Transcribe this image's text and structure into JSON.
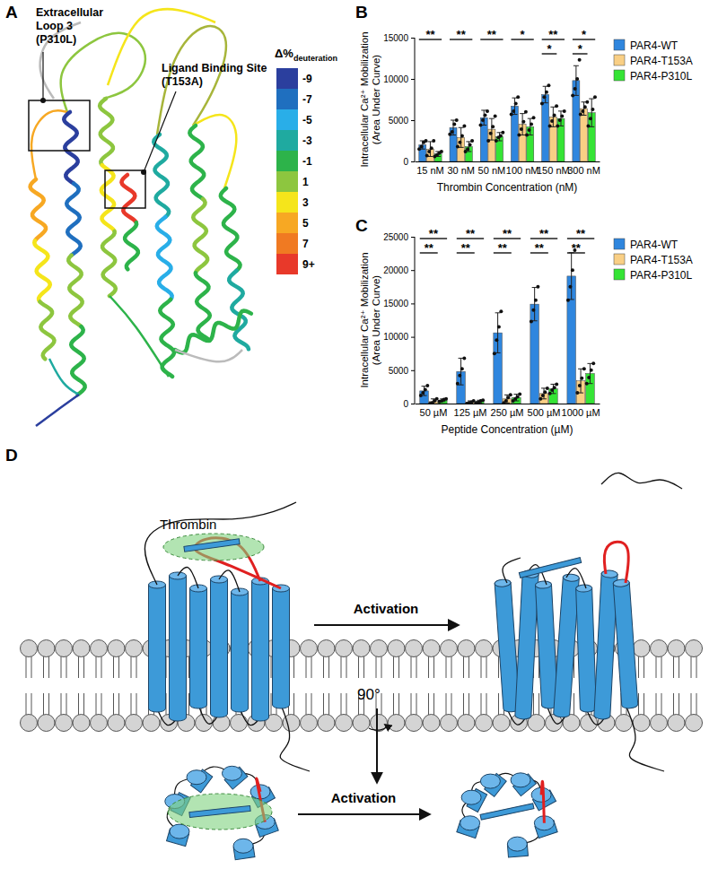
{
  "panel_labels": [
    "A",
    "B",
    "C",
    "D"
  ],
  "panel_a": {
    "colorbar_title": "Δ%",
    "colorbar_title_sub": "deuteration",
    "colorbar": {
      "ticks": [
        -9,
        -7,
        -5,
        -3,
        -1,
        1,
        3,
        5,
        7,
        {
          "value": 9,
          "label": "9+"
        }
      ],
      "colors": [
        "#2b3f9e",
        "#1f6fbf",
        "#29aee8",
        "#1faaa0",
        "#2db34a",
        "#8dc63f",
        "#f5e51b",
        "#f7a823",
        "#f07a22",
        "#e8392a"
      ]
    },
    "annotations": [
      {
        "lines": [
          "Extracellular",
          "Loop 3",
          "(P310L)"
        ]
      },
      {
        "lines": [
          "Ligand Binding Site",
          "(T153A)"
        ]
      }
    ]
  },
  "chart_data": [
    {
      "type": "bar",
      "xlabel": "Thrombin Concentration (nM)",
      "ylabel": [
        "Intracellular Ca²⁺ Mobilization",
        "(Area Under Curve)"
      ],
      "categories": [
        "15 nM",
        "30 nM",
        "50 nM",
        "100 nM",
        "150 nM",
        "300 nM"
      ],
      "ylim": [
        0,
        15000
      ],
      "yticks": [
        0,
        5000,
        10000,
        15000
      ],
      "legend": "right",
      "series": [
        {
          "name": "PAR4-WT",
          "color": "#2f86de",
          "values": [
            2000,
            4100,
            5300,
            6700,
            8100,
            9800
          ],
          "errors": [
            500,
            900,
            900,
            1000,
            1000,
            1800
          ],
          "points": [
            [
              1500,
              1800,
              2300,
              2500
            ],
            [
              3300,
              3600,
              4500,
              5000
            ],
            [
              4400,
              5000,
              5600,
              6100
            ],
            [
              5700,
              6100,
              7000,
              7800
            ],
            [
              7000,
              7800,
              8400,
              9200
            ],
            [
              8000,
              8800,
              10000,
              12300
            ]
          ]
        },
        {
          "name": "PAR4-T153A",
          "color": "#f9cf85",
          "values": [
            1500,
            2900,
            3900,
            4500,
            5400,
            6400
          ],
          "errors": [
            900,
            1200,
            1300,
            1300,
            1200,
            800
          ],
          "points": [
            [
              700,
              1200,
              1600,
              2500
            ],
            [
              1800,
              2300,
              3100,
              4300
            ],
            [
              2500,
              3400,
              4200,
              5500
            ],
            [
              3200,
              3900,
              4800,
              6000
            ],
            [
              4300,
              4900,
              5600,
              6700
            ],
            [
              5700,
              6100,
              6600,
              7200
            ]
          ]
        },
        {
          "name": "PAR4-P310L",
          "color": "#35e435",
          "values": [
            900,
            1800,
            3000,
            4200,
            5200,
            5900
          ],
          "errors": [
            300,
            600,
            500,
            1000,
            900,
            1700
          ],
          "points": [
            [
              600,
              800,
              1000,
              1200
            ],
            [
              1200,
              1500,
              2000,
              2500
            ],
            [
              2500,
              2900,
              3100,
              3500
            ],
            [
              3200,
              3800,
              4500,
              5300
            ],
            [
              4300,
              5000,
              5500,
              6100
            ],
            [
              4300,
              5200,
              6300,
              7800
            ]
          ]
        }
      ],
      "significance": [
        {
          "category": "15 nM",
          "vs": "PAR4-P310L",
          "label": "**"
        },
        {
          "category": "30 nM",
          "vs": "PAR4-P310L",
          "label": "**"
        },
        {
          "category": "50 nM",
          "vs": "PAR4-P310L",
          "label": "**"
        },
        {
          "category": "100 nM",
          "vs": "PAR4-P310L",
          "label": "*"
        },
        {
          "category": "150 nM",
          "vs": "PAR4-P310L",
          "label": "**"
        },
        {
          "category": "150 nM",
          "vs": "PAR4-T153A",
          "label": "*"
        },
        {
          "category": "300 nM",
          "vs": "PAR4-P310L",
          "label": "*"
        },
        {
          "category": "300 nM",
          "vs": "PAR4-T153A",
          "label": "*"
        }
      ]
    },
    {
      "type": "bar",
      "xlabel": "Peptide Concentration (µM)",
      "ylabel": [
        "Intracellular Ca²⁺ Mobilization",
        "(Area Under Curve)"
      ],
      "categories": [
        "50 µM",
        "125 µM",
        "250 µM",
        "500 µM",
        "1000 µM"
      ],
      "ylim": [
        0,
        25000
      ],
      "yticks": [
        0,
        5000,
        10000,
        15000,
        20000,
        25000
      ],
      "legend": "right",
      "series": [
        {
          "name": "PAR4-WT",
          "color": "#2f86de",
          "values": [
            1900,
            4800,
            10600,
            14900,
            19100
          ],
          "errors": [
            700,
            2000,
            3000,
            2500,
            3500
          ],
          "points": [
            [
              1200,
              1600,
              2100,
              2700
            ],
            [
              3000,
              4200,
              5200,
              6800
            ],
            [
              7500,
              9500,
              11500,
              13800
            ],
            [
              12300,
              14000,
              15500,
              17500
            ],
            [
              15500,
              17500,
              20000,
              23000
            ]
          ]
        },
        {
          "name": "PAR4-T153A",
          "color": "#f9cf85",
          "values": [
            300,
            200,
            700,
            1500,
            3400
          ],
          "errors": [
            400,
            200,
            600,
            800,
            1800
          ],
          "points": [
            [
              0,
              100,
              400,
              700
            ],
            [
              0,
              100,
              200,
              400
            ],
            [
              100,
              400,
              900,
              1300
            ],
            [
              700,
              1200,
              1700,
              2300
            ],
            [
              1600,
              2700,
              3800,
              5200
            ]
          ]
        },
        {
          "name": "PAR4-P310L",
          "color": "#35e435",
          "values": [
            500,
            300,
            900,
            2200,
            4500
          ],
          "errors": [
            200,
            200,
            500,
            700,
            1500
          ],
          "points": [
            [
              300,
              400,
              600,
              700
            ],
            [
              100,
              200,
              400,
              500
            ],
            [
              400,
              700,
              1000,
              1400
            ],
            [
              1500,
              2000,
              2400,
              2900
            ],
            [
              3000,
              3900,
              5000,
              6000
            ]
          ]
        }
      ],
      "significance": [
        {
          "category": "50 µM",
          "vs": "PAR4-P310L",
          "label": "**"
        },
        {
          "category": "50 µM",
          "vs": "PAR4-T153A",
          "label": "**"
        },
        {
          "category": "125 µM",
          "vs": "PAR4-P310L",
          "label": "**"
        },
        {
          "category": "125 µM",
          "vs": "PAR4-T153A",
          "label": "**"
        },
        {
          "category": "250 µM",
          "vs": "PAR4-P310L",
          "label": "**"
        },
        {
          "category": "250 µM",
          "vs": "PAR4-T153A",
          "label": "**"
        },
        {
          "category": "500 µM",
          "vs": "PAR4-P310L",
          "label": "**"
        },
        {
          "category": "500 µM",
          "vs": "PAR4-T153A",
          "label": "**"
        },
        {
          "category": "1000 µM",
          "vs": "PAR4-P310L",
          "label": "**"
        },
        {
          "category": "1000 µM",
          "vs": "PAR4-T153A",
          "label": "**"
        }
      ]
    }
  ],
  "panel_d": {
    "ligand_label": "Thrombin",
    "arrow_label": "Activation",
    "rotation_label": "90°"
  }
}
